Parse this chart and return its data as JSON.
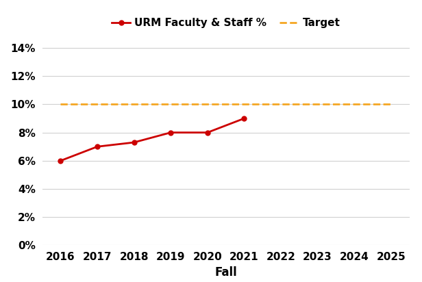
{
  "urm_years": [
    2016,
    2017,
    2018,
    2019,
    2020,
    2021
  ],
  "urm_values": [
    0.06,
    0.07,
    0.073,
    0.08,
    0.08,
    0.09
  ],
  "target_value": 0.1,
  "all_years": [
    2016,
    2017,
    2018,
    2019,
    2020,
    2021,
    2022,
    2023,
    2024,
    2025
  ],
  "urm_color": "#cc0000",
  "target_color": "#f5a623",
  "urm_label": "URM Faculty & Staff %",
  "target_label": "Target",
  "xlabel": "Fall",
  "ylim": [
    0,
    0.15
  ],
  "yticks": [
    0,
    0.02,
    0.04,
    0.06,
    0.08,
    0.1,
    0.12,
    0.14
  ],
  "ytick_labels": [
    "0%",
    "2%",
    "4%",
    "6%",
    "8%",
    "10%",
    "12%",
    "14%"
  ],
  "background_color": "#ffffff",
  "grid_color": "#d0d0d0",
  "line_width": 2.0,
  "marker": "o",
  "marker_size": 5,
  "legend_fontsize": 11,
  "axis_label_fontsize": 12,
  "tick_fontsize": 11
}
